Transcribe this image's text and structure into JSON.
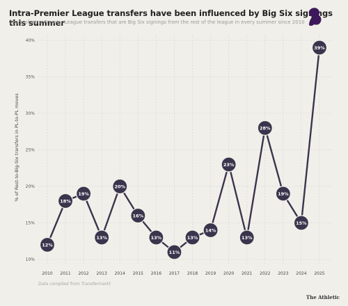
{
  "header": {
    "title": "Intra-Premier League transfers have been influenced by Big Six signings this summer",
    "subtitle": "Share of intra-Premier League transfers that are Big Six signings from the rest of the league in every summer since 2010"
  },
  "footer": {
    "source": "Data compiled from Transfermarkt",
    "brand": "The Athletic"
  },
  "colors": {
    "line": "#3a354d",
    "marker": "#3a354d",
    "marker_text": "#ffffff",
    "grid": "#d4d2cb",
    "logo": "#3d195b"
  },
  "chart_data": {
    "type": "line",
    "x": [
      "2010",
      "2011",
      "2012",
      "2013",
      "2014",
      "2015",
      "2016",
      "2017",
      "2018",
      "2019",
      "2020",
      "2021",
      "2022",
      "2023",
      "2024",
      "2025"
    ],
    "series": [
      {
        "values": [
          12,
          18,
          19,
          13,
          20,
          16,
          13,
          11,
          13,
          14,
          23,
          13,
          28,
          19,
          15,
          39
        ]
      }
    ],
    "data_labels": [
      "12%",
      "18%",
      "19%",
      "13%",
      "20%",
      "16%",
      "13%",
      "11%",
      "13%",
      "14%",
      "23%",
      "13%",
      "28%",
      "19%",
      "15%",
      "39%"
    ],
    "ylabel": "% of Rest-to-Big-Six transfers in PL-to-PL moves",
    "ylim": [
      10,
      40
    ],
    "yticks": [
      10,
      15,
      20,
      25,
      30,
      35,
      40
    ],
    "ytick_labels": [
      "10%",
      "15%",
      "20%",
      "25%",
      "30%",
      "35%",
      "40%"
    ],
    "grid": true
  }
}
